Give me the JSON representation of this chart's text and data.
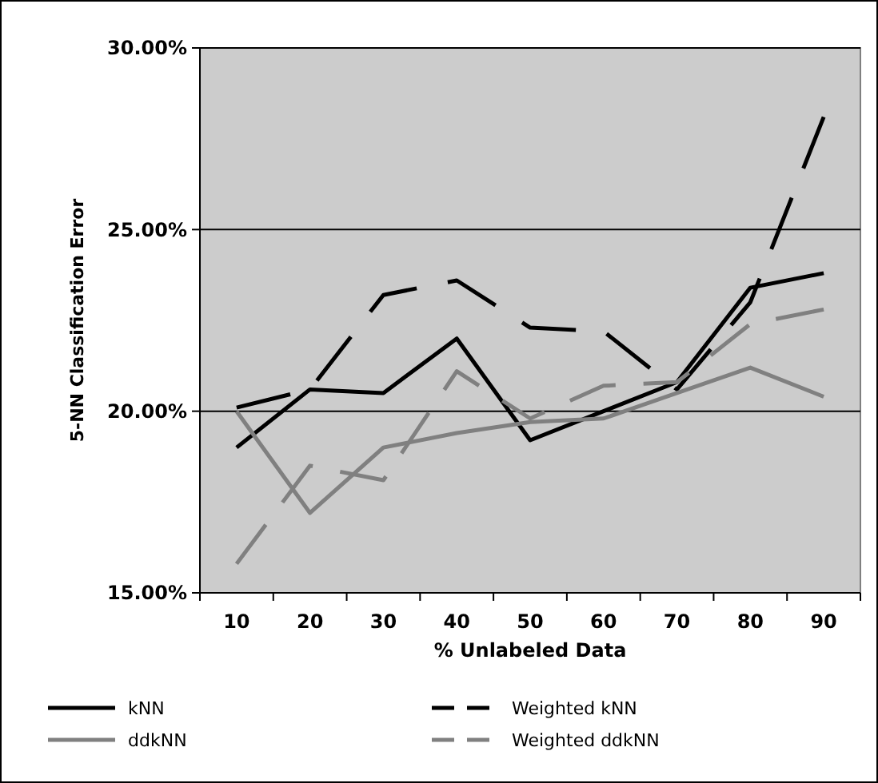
{
  "chart_data": {
    "type": "line",
    "xlabel": "% Unlabeled Data",
    "ylabel": "5-NN Classification Error",
    "categories": [
      "10",
      "20",
      "30",
      "40",
      "50",
      "60",
      "70",
      "80",
      "90"
    ],
    "ylim": [
      15,
      30
    ],
    "yticks": [
      {
        "value": 15,
        "label": "15.00%"
      },
      {
        "value": 20,
        "label": "20.00%"
      },
      {
        "value": 25,
        "label": "25.00%"
      },
      {
        "value": 30,
        "label": "30.00%"
      }
    ],
    "grid": "y",
    "legend": "bottom",
    "marker": "none",
    "series": [
      {
        "name": "kNN",
        "color": "#000000",
        "line_style": "solid",
        "values": [
          19.0,
          20.6,
          20.5,
          22.0,
          19.2,
          20.0,
          20.8,
          23.4,
          23.8
        ]
      },
      {
        "name": "Weighted kNN",
        "color": "#000000",
        "line_style": "dashed",
        "values": [
          20.1,
          20.6,
          23.2,
          23.6,
          22.3,
          22.2,
          20.6,
          23.0,
          28.1
        ]
      },
      {
        "name": "ddkNN",
        "color": "#808080",
        "line_style": "solid",
        "values": [
          20.0,
          17.2,
          19.0,
          19.4,
          19.7,
          19.8,
          20.5,
          21.2,
          20.4
        ]
      },
      {
        "name": "Weighted ddkNN",
        "color": "#808080",
        "line_style": "dashed",
        "values": [
          15.8,
          18.5,
          18.1,
          21.1,
          19.8,
          20.7,
          20.8,
          22.4,
          22.8
        ]
      }
    ]
  }
}
